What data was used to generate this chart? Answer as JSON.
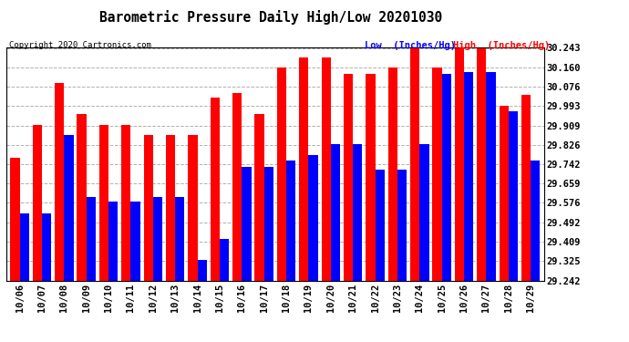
{
  "title": "Barometric Pressure Daily High/Low 20201030",
  "copyright": "Copyright 2020 Cartronics.com",
  "legend_low": "Low  (Inches/Hg)",
  "legend_high": "High  (Inches/Hg)",
  "dates": [
    "10/06",
    "10/07",
    "10/08",
    "10/09",
    "10/10",
    "10/11",
    "10/12",
    "10/13",
    "10/14",
    "10/15",
    "10/16",
    "10/17",
    "10/18",
    "10/19",
    "10/20",
    "10/21",
    "10/22",
    "10/23",
    "10/24",
    "10/25",
    "10/26",
    "10/27",
    "10/28",
    "10/29"
  ],
  "high": [
    29.77,
    29.91,
    30.09,
    29.96,
    29.91,
    29.91,
    29.87,
    29.87,
    29.87,
    30.03,
    30.05,
    29.96,
    30.16,
    30.2,
    30.2,
    30.13,
    30.13,
    30.16,
    30.24,
    30.16,
    30.24,
    30.24,
    29.993,
    30.04
  ],
  "low": [
    29.53,
    29.53,
    29.87,
    29.6,
    29.58,
    29.58,
    29.6,
    29.6,
    29.33,
    29.42,
    29.73,
    29.73,
    29.76,
    29.78,
    29.83,
    29.83,
    29.72,
    29.72,
    29.83,
    30.13,
    30.14,
    30.14,
    29.97,
    29.76
  ],
  "ymin": 29.242,
  "ymax": 30.243,
  "yticks": [
    29.242,
    29.325,
    29.409,
    29.492,
    29.576,
    29.659,
    29.742,
    29.826,
    29.909,
    29.993,
    30.076,
    30.16,
    30.243
  ],
  "color_high": "#ff0000",
  "color_low": "#0000ff",
  "background_color": "#ffffff",
  "grid_color": "#b0b0b0"
}
